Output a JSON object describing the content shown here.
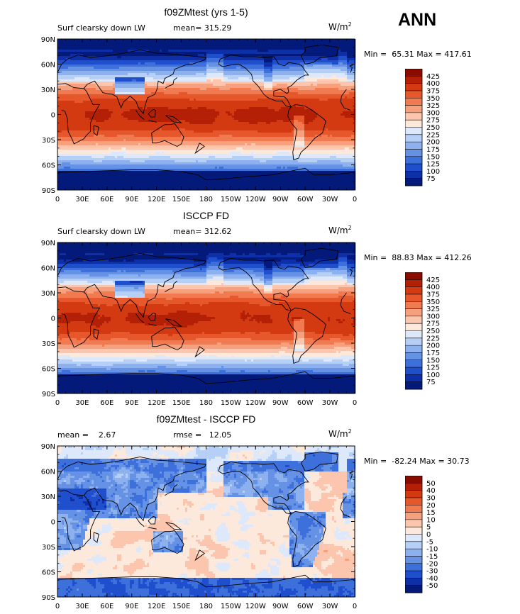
{
  "season": "ANN",
  "panels": [
    {
      "title": "f09ZMtest (yrs 1-5)",
      "left_label": "Surf clearsky down LW",
      "center_label": "mean= 315.29",
      "units": "W/m",
      "units_sup": "2",
      "min_label": "Min =",
      "min_value": "65.31",
      "max_label": "Max =",
      "max_value": "417.61",
      "colorbar_labels": [
        "425",
        "400",
        "375",
        "350",
        "325",
        "300",
        "275",
        "250",
        "225",
        "200",
        "175",
        "150",
        "125",
        "100",
        "75"
      ],
      "colorbar_colors": [
        "#8a0b00",
        "#b32005",
        "#d33a12",
        "#e6572b",
        "#f17a51",
        "#f7a07e",
        "#fbc6ad",
        "#fde8dc",
        "#dde9fb",
        "#b5cff6",
        "#8cb1ee",
        "#6592e5",
        "#3e70dc",
        "#1f4fcd",
        "#0d2fa8",
        "#041a7a"
      ],
      "contour_levels": [
        75,
        100,
        125,
        150,
        175,
        200,
        225,
        250,
        275,
        300,
        325,
        350,
        375,
        400,
        425
      ]
    },
    {
      "title": "ISCCP FD",
      "left_label": "Surf clearsky down LW",
      "center_label": "mean= 312.62",
      "units": "W/m",
      "units_sup": "2",
      "min_label": "Min =",
      "min_value": "88.83",
      "max_label": "Max =",
      "max_value": "412.26",
      "colorbar_labels": [
        "425",
        "400",
        "375",
        "350",
        "325",
        "300",
        "275",
        "250",
        "225",
        "200",
        "175",
        "150",
        "125",
        "100",
        "75"
      ],
      "colorbar_colors": [
        "#8a0b00",
        "#b32005",
        "#d33a12",
        "#e6572b",
        "#f17a51",
        "#f7a07e",
        "#fbc6ad",
        "#fde8dc",
        "#dde9fb",
        "#b5cff6",
        "#8cb1ee",
        "#6592e5",
        "#3e70dc",
        "#1f4fcd",
        "#0d2fa8",
        "#041a7a"
      ],
      "contour_levels": [
        75,
        100,
        125,
        150,
        175,
        200,
        225,
        250,
        275,
        300,
        325,
        350,
        375,
        400,
        425
      ]
    },
    {
      "title": "f09ZMtest - ISCCP FD",
      "left_label": "mean =    2.67",
      "center_label": "rmse =   12.05",
      "units": "W/m",
      "units_sup": "2",
      "min_label": "Min =",
      "min_value": "-82.24",
      "max_label": "Max =",
      "max_value": "30.73",
      "colorbar_labels": [
        "50",
        "40",
        "30",
        "20",
        "15",
        "10",
        "5",
        "0",
        "-5",
        "-10",
        "-15",
        "-20",
        "-30",
        "-40",
        "-50"
      ],
      "colorbar_colors": [
        "#8a0b00",
        "#b32005",
        "#d33a12",
        "#e6572b",
        "#f17a51",
        "#f7a07e",
        "#fbc6ad",
        "#fde8dc",
        "#dde9fb",
        "#b5cff6",
        "#8cb1ee",
        "#6592e5",
        "#3e70dc",
        "#1f4fcd",
        "#0d2fa8",
        "#041a7a"
      ],
      "contour_levels": [
        -50,
        -40,
        -30,
        -20,
        -15,
        -10,
        -5,
        0,
        5,
        10,
        15,
        20,
        30,
        40,
        50
      ]
    }
  ],
  "lat_ticks": [
    "90N",
    "60N",
    "30N",
    "0",
    "30S",
    "60S",
    "90S"
  ],
  "lon_ticks": [
    "0",
    "30E",
    "60E",
    "90E",
    "120E",
    "150E",
    "180",
    "150W",
    "120W",
    "90W",
    "60W",
    "30W",
    "0"
  ]
}
